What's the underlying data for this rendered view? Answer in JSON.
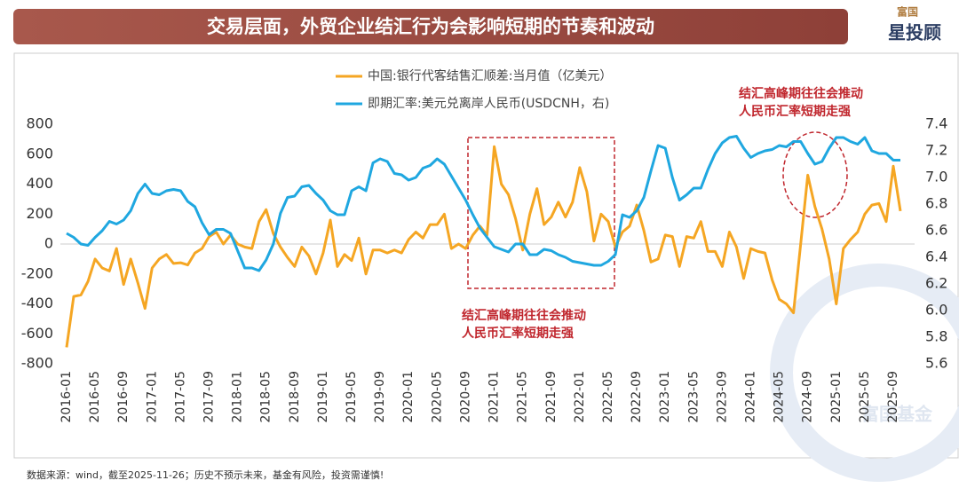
{
  "header": {
    "title": "交易层面，外贸企业结汇行为会影响短期的节奏和波动",
    "logo_top": "富国",
    "logo_main": "星投顾"
  },
  "chart_data": {
    "type": "line",
    "categories": [
      "2016-01",
      null,
      null,
      null,
      "2016-05",
      null,
      null,
      null,
      "2016-09",
      null,
      null,
      null,
      "2017-01",
      null,
      null,
      null,
      "2017-05",
      null,
      null,
      null,
      "2017-09",
      null,
      null,
      null,
      "2018-01",
      null,
      null,
      null,
      "2018-05",
      null,
      null,
      null,
      "2018-09",
      null,
      null,
      null,
      "2019-01",
      null,
      null,
      null,
      "2019-05",
      null,
      null,
      null,
      "2019-09",
      null,
      null,
      null,
      "2020-01",
      null,
      null,
      null,
      "2020-05",
      null,
      null,
      null,
      "2020-09",
      null,
      null,
      null,
      "2021-01",
      null,
      null,
      null,
      "2021-05",
      null,
      null,
      null,
      "2021-09",
      null,
      null,
      null,
      "2022-01",
      null,
      null,
      null,
      "2022-05",
      null,
      null,
      null,
      "2022-09",
      null,
      null,
      null,
      "2023-01",
      null,
      null,
      null,
      "2023-05",
      null,
      null,
      null,
      "2023-09",
      null,
      null,
      null,
      "2024-01",
      null,
      null,
      null,
      "2024-05",
      null,
      null,
      null,
      "2024-09",
      null,
      null,
      null,
      "2025-01",
      null,
      null,
      null,
      "2025-05",
      null,
      null,
      null,
      "2025-09",
      null
    ],
    "series": [
      {
        "name": "中国:银行代客结售汇顺差:当月值（亿美元）",
        "color": "#f5a623",
        "axis": "y",
        "values": [
          -690,
          -350,
          -340,
          -250,
          -100,
          -160,
          -180,
          -30,
          -270,
          -100,
          -260,
          -430,
          -160,
          -100,
          -70,
          -130,
          -125,
          -140,
          -60,
          -30,
          50,
          80,
          0,
          60,
          0,
          -20,
          -30,
          150,
          230,
          70,
          -20,
          -90,
          -150,
          -20,
          -80,
          -200,
          -60,
          160,
          -150,
          -70,
          -110,
          40,
          -200,
          -40,
          -40,
          -60,
          -40,
          -60,
          30,
          80,
          40,
          130,
          130,
          200,
          -30,
          0,
          -30,
          60,
          120,
          60,
          650,
          400,
          330,
          170,
          -40,
          200,
          370,
          130,
          180,
          280,
          180,
          280,
          510,
          350,
          20,
          200,
          150,
          -20,
          80,
          120,
          260,
          90,
          -120,
          -100,
          60,
          50,
          -150,
          50,
          40,
          150,
          -50,
          -50,
          -150,
          80,
          -20,
          -230,
          -30,
          -50,
          -60,
          -240,
          -370,
          -400,
          -460,
          0,
          460,
          250,
          100,
          -100,
          -400,
          -30,
          30,
          80,
          200,
          260,
          270,
          150,
          520,
          220
        ]
      },
      {
        "name": "即期汇率:美元兑离岸人民币(USDCNH，右)",
        "color": "#1fa7e0",
        "axis": "y2",
        "values": [
          6.58,
          6.55,
          6.5,
          6.49,
          6.55,
          6.6,
          6.67,
          6.65,
          6.68,
          6.75,
          6.88,
          6.95,
          6.88,
          6.87,
          6.9,
          6.91,
          6.9,
          6.82,
          6.78,
          6.66,
          6.57,
          6.61,
          6.61,
          6.58,
          6.45,
          6.32,
          6.32,
          6.3,
          6.38,
          6.5,
          6.73,
          6.85,
          6.86,
          6.93,
          6.94,
          6.88,
          6.83,
          6.75,
          6.72,
          6.72,
          6.9,
          6.93,
          6.9,
          7.11,
          7.14,
          7.12,
          7.03,
          7.02,
          6.98,
          7.0,
          7.07,
          7.09,
          7.14,
          7.1,
          7.01,
          6.92,
          6.83,
          6.72,
          6.62,
          6.55,
          6.48,
          6.46,
          6.44,
          6.5,
          6.5,
          6.42,
          6.42,
          6.46,
          6.45,
          6.42,
          6.4,
          6.37,
          6.36,
          6.35,
          6.34,
          6.34,
          6.37,
          6.42,
          6.72,
          6.7,
          6.75,
          6.85,
          7.05,
          7.24,
          7.22,
          7.0,
          6.83,
          6.87,
          6.92,
          6.92,
          7.06,
          7.18,
          7.26,
          7.3,
          7.31,
          7.22,
          7.15,
          7.18,
          7.2,
          7.21,
          7.24,
          7.23,
          7.27,
          7.27,
          7.18,
          7.1,
          7.12,
          7.22,
          7.3,
          7.3,
          7.27,
          7.25,
          7.3,
          7.2,
          7.18,
          7.18,
          7.13,
          7.13
        ]
      }
    ],
    "ylim": [
      -800,
      800
    ],
    "yticks": [
      -800,
      -600,
      -400,
      -200,
      0,
      200,
      400,
      600,
      800
    ],
    "y2lim": [
      5.6,
      7.4
    ],
    "y2ticks": [
      5.6,
      5.8,
      {
        "value": 6,
        "label": "6.0"
      },
      6.2,
      6.4,
      6.6,
      6.8,
      {
        "value": 7,
        "label": "7.0"
      },
      7.2,
      7.4
    ],
    "annotations": [
      "结汇高峰期往往会推动",
      "人民币汇率短期走强",
      "结汇高峰期往往会推动",
      "人民币汇率短期走强"
    ],
    "watermark": "富国基金"
  },
  "footer": "数据来源：wind，截至2025-11-26；历史不预示未来，基金有风险，投资需谨慎!"
}
